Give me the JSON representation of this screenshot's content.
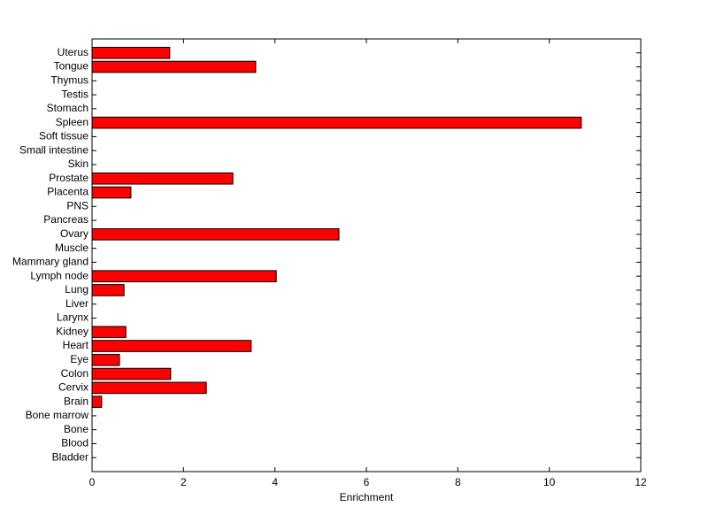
{
  "chart_data": {
    "type": "bar",
    "orientation": "horizontal",
    "xlabel": "Enrichment",
    "categories": [
      "Bladder",
      "Blood",
      "Bone",
      "Bone marrow",
      "Brain",
      "Cervix",
      "Colon",
      "Eye",
      "Heart",
      "Kidney",
      "Larynx",
      "Liver",
      "Lung",
      "Lymph node",
      "Mammary gland",
      "Muscle",
      "Ovary",
      "Pancreas",
      "PNS",
      "Placenta",
      "Prostate",
      "Skin",
      "Small intestine",
      "Soft tissue",
      "Spleen",
      "Stomach",
      "Testis",
      "Thymus",
      "Tongue",
      "Uterus"
    ],
    "values": [
      0,
      0,
      0,
      0,
      0.21,
      2.5,
      1.72,
      0.6,
      3.48,
      0.74,
      0,
      0,
      0.7,
      4.03,
      0,
      0,
      5.4,
      0,
      0,
      0.85,
      3.08,
      0,
      0,
      0,
      10.7,
      0,
      0,
      0,
      3.58,
      1.7
    ],
    "color": "#ff0000",
    "xlim": [
      0,
      12
    ],
    "xticks": [
      0,
      2,
      4,
      6,
      8,
      10,
      12
    ],
    "grid": false
  }
}
